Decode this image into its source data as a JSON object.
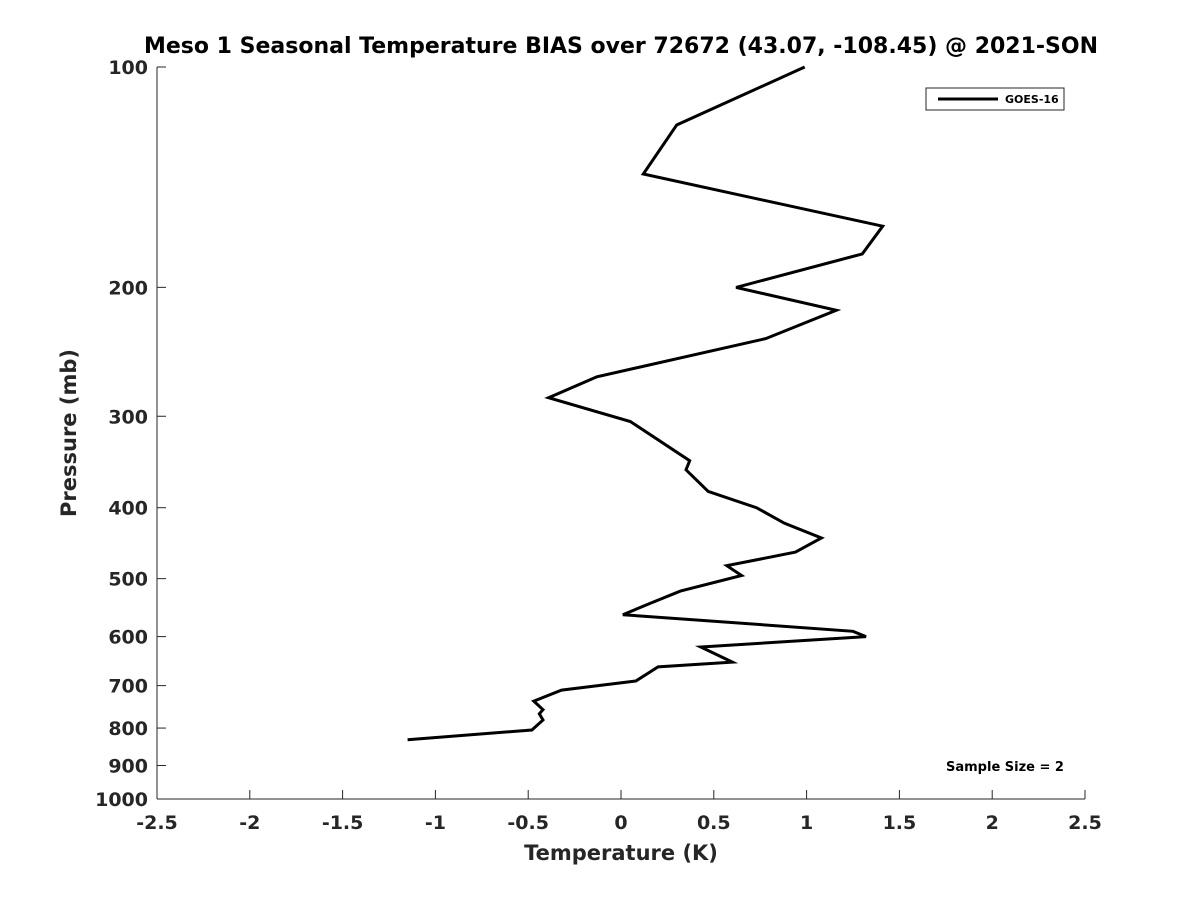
{
  "chart_data": {
    "type": "line",
    "title": "Meso 1 Seasonal Temperature BIAS over 72672 (43.07, -108.45) @ 2021-SON",
    "xlabel": "Temperature (K)",
    "ylabel": "Pressure (mb)",
    "xlim": [
      -2.5,
      2.5
    ],
    "ylim": [
      100,
      1000
    ],
    "y_scale": "log",
    "y_reversed": true,
    "x_ticks": [
      "-2.5",
      "-2",
      "-1.5",
      "-1",
      "-0.5",
      "0",
      "0.5",
      "1",
      "1.5",
      "2",
      "2.5"
    ],
    "x_tick_values": [
      -2.5,
      -2,
      -1.5,
      -1,
      -0.5,
      0,
      0.5,
      1,
      1.5,
      2,
      2.5
    ],
    "y_ticks": [
      "100",
      "200",
      "300",
      "400",
      "500",
      "600",
      "700",
      "800",
      "900",
      "1000"
    ],
    "y_tick_values": [
      100,
      200,
      300,
      400,
      500,
      600,
      700,
      800,
      900,
      1000
    ],
    "grid": false,
    "legend_position": "top-right",
    "annotation": "Sample Size = 2",
    "series": [
      {
        "name": "GOES-16",
        "color": "#000000",
        "points": [
          {
            "x": 0.99,
            "p": 100
          },
          {
            "x": 0.3,
            "p": 120
          },
          {
            "x": 0.12,
            "p": 140
          },
          {
            "x": 1.41,
            "p": 165
          },
          {
            "x": 1.3,
            "p": 180
          },
          {
            "x": 0.62,
            "p": 200
          },
          {
            "x": 1.16,
            "p": 215
          },
          {
            "x": 0.78,
            "p": 235
          },
          {
            "x": -0.13,
            "p": 265
          },
          {
            "x": -0.39,
            "p": 283
          },
          {
            "x": 0.05,
            "p": 305
          },
          {
            "x": 0.37,
            "p": 345
          },
          {
            "x": 0.35,
            "p": 355
          },
          {
            "x": 0.47,
            "p": 380
          },
          {
            "x": 0.73,
            "p": 400
          },
          {
            "x": 0.88,
            "p": 420
          },
          {
            "x": 1.08,
            "p": 440
          },
          {
            "x": 0.94,
            "p": 460
          },
          {
            "x": 0.57,
            "p": 480
          },
          {
            "x": 0.65,
            "p": 495
          },
          {
            "x": 0.32,
            "p": 520
          },
          {
            "x": 0.16,
            "p": 540
          },
          {
            "x": 0.01,
            "p": 560
          },
          {
            "x": 1.25,
            "p": 590
          },
          {
            "x": 1.32,
            "p": 600
          },
          {
            "x": 0.43,
            "p": 620
          },
          {
            "x": 0.6,
            "p": 650
          },
          {
            "x": 0.2,
            "p": 660
          },
          {
            "x": 0.08,
            "p": 690
          },
          {
            "x": -0.32,
            "p": 710
          },
          {
            "x": -0.47,
            "p": 735
          },
          {
            "x": -0.42,
            "p": 755
          },
          {
            "x": -0.44,
            "p": 765
          },
          {
            "x": -0.42,
            "p": 780
          },
          {
            "x": -0.48,
            "p": 805
          },
          {
            "x": -1.15,
            "p": 830
          }
        ]
      }
    ]
  }
}
